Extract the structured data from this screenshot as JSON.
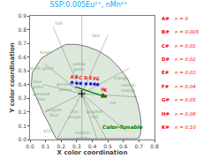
{
  "chart_data": {
    "type": "scatter",
    "title": "SSP:0.005Eu²⁺, nMn²⁺",
    "title_color": "#00aaff",
    "xlabel": "X color coordination",
    "ylabel": "Y color coordination",
    "xlim": [
      0.0,
      0.8
    ],
    "ylim": [
      0.0,
      0.9
    ],
    "xticks": [
      {
        "value": 0.0,
        "label": "0.0"
      },
      0.1,
      0.2,
      0.3,
      0.4,
      0.5,
      0.6,
      0.7,
      0.8
    ],
    "yticks": [
      {
        "value": 0.0,
        "label": "0.0"
      },
      0.1,
      0.2,
      0.3,
      0.4,
      0.5,
      0.6,
      0.7,
      0.8,
      0.9
    ],
    "grid": false,
    "points": {
      "labels": [
        "A",
        "B",
        "C",
        "D",
        "E",
        "F",
        "G",
        "H",
        "K"
      ],
      "x": [
        0.27,
        0.3,
        0.325,
        0.36,
        0.39,
        0.415,
        0.435,
        0.468,
        0.485
      ],
      "y": [
        0.415,
        0.41,
        0.408,
        0.405,
        0.405,
        0.403,
        0.4,
        0.323,
        0.315
      ],
      "colors": [
        "#1515dd",
        "#1515dd",
        "#1515dd",
        "#1515dd",
        "#1515dd",
        "#1515dd",
        "#1515dd",
        "#dd1515",
        "#dd1515"
      ],
      "label_color": "red"
    },
    "boundary": {
      "x": [
        0.1741,
        0.174,
        0.1738,
        0.1736,
        0.173,
        0.1714,
        0.1689,
        0.1644,
        0.1566,
        0.144,
        0.1241,
        0.0913,
        0.0454,
        0.0082,
        0.0139,
        0.0743,
        0.1547,
        0.2296,
        0.3016,
        0.3731,
        0.4441,
        0.5125,
        0.5752,
        0.627,
        0.6658,
        0.6915,
        0.7079,
        0.714,
        0.71,
        0.6992,
        0.6627,
        0.627,
        0.5668,
        0.5031,
        0.4412,
        0.381,
        0.321,
        0.265,
        0.212,
        0.1741
      ],
      "y": [
        0.005,
        0.005,
        0.0049,
        0.0049,
        0.0048,
        0.0051,
        0.0069,
        0.0133,
        0.0291,
        0.0578,
        0.1096,
        0.1767,
        0.295,
        0.389,
        0.486,
        0.5932,
        0.6476,
        0.6923,
        0.6923,
        0.6745,
        0.6425,
        0.5929,
        0.5204,
        0.4412,
        0.3533,
        0.265,
        0.1821,
        0.1048,
        0.038,
        0.0082,
        0.006,
        0.006,
        0.006,
        0.006,
        0.006,
        0.006,
        0.006,
        0.006,
        0.006,
        0.005
      ],
      "color": "#dde8dd",
      "edge_color": "#555555"
    },
    "internal_lines": {
      "color": "#666666",
      "segments": [
        [
          [
            0.333,
            0.333
          ],
          [
            0.333,
            0.007
          ]
        ],
        [
          [
            0.333,
            0.333
          ],
          [
            0.174,
            0.007
          ]
        ],
        [
          [
            0.333,
            0.333
          ],
          [
            0.49,
            0.007
          ]
        ],
        [
          [
            0.333,
            0.333
          ],
          [
            0.333,
            0.9
          ]
        ],
        [
          [
            0.333,
            0.333
          ],
          [
            0.148,
            0.82
          ]
        ],
        [
          [
            0.333,
            0.333
          ],
          [
            0.095,
            0.55
          ]
        ],
        [
          [
            0.333,
            0.333
          ],
          [
            0.085,
            0.4
          ]
        ],
        [
          [
            0.333,
            0.333
          ],
          [
            0.095,
            0.2
          ]
        ],
        [
          [
            0.333,
            0.333
          ],
          [
            0.5,
            0.76
          ]
        ],
        [
          [
            0.333,
            0.333
          ],
          [
            0.64,
            0.52
          ]
        ],
        [
          [
            0.333,
            0.333
          ],
          [
            0.69,
            0.31
          ]
        ],
        [
          [
            0.333,
            0.333
          ],
          [
            0.62,
            0.06
          ]
        ],
        [
          [
            0.333,
            0.333
          ],
          [
            0.43,
            0.007
          ]
        ]
      ]
    },
    "white_point": {
      "x": 0.333,
      "y": 0.333,
      "color": "black"
    },
    "arrow": {
      "start": [
        0.28,
        0.388
      ],
      "end": [
        0.492,
        0.308
      ],
      "color": "green"
    },
    "annotations": [
      {
        "text": "Color-Tunable",
        "x": 0.595,
        "y": 0.095,
        "color": "green"
      }
    ],
    "region_labels": [
      {
        "text": "Green",
        "x": 0.1,
        "y": 0.635,
        "color": "#7aaa7a"
      },
      {
        "text": "bluish green",
        "x": 0.073,
        "y": 0.515,
        "color": "#7aaa7a"
      },
      {
        "text": "blue\ngreen",
        "x": 0.048,
        "y": 0.405,
        "color": "#7aaa7a"
      },
      {
        "text": "greenish\nyellow",
        "x": 0.225,
        "y": 0.385,
        "color": "#7aaa7a"
      },
      {
        "text": "greenish\nblue",
        "x": 0.075,
        "y": 0.315,
        "color": "#7aaa7a"
      },
      {
        "text": "c",
        "x": 0.305,
        "y": 0.285,
        "color": "#7aaa7a"
      },
      {
        "text": "red",
        "x": 0.535,
        "y": 0.27,
        "color": "#7aaa7a"
      },
      {
        "text": "purplish\nblue",
        "x": 0.155,
        "y": 0.195,
        "color": "#7aaa7a"
      },
      {
        "text": "red\npurple",
        "x": 0.285,
        "y": 0.185,
        "color": "#7aaa7a"
      },
      {
        "text": "purplish\nred",
        "x": 0.415,
        "y": 0.185,
        "color": "#7aaa7a"
      },
      {
        "text": "reddish\npurple",
        "x": 0.335,
        "y": 0.028,
        "color": "#7aaa7a"
      },
      {
        "text": "reddish\norange",
        "x": 0.63,
        "y": 0.375,
        "color": "#7aaa7a"
      },
      {
        "text": "orange",
        "x": 0.585,
        "y": 0.445,
        "color": "#7aaa7a"
      },
      {
        "text": "yellow\ngreen",
        "x": 0.315,
        "y": 0.53,
        "color": "#7aaa7a"
      },
      {
        "text": "530",
        "x": 0.185,
        "y": 0.845,
        "color": "#7aaa7a"
      },
      {
        "text": "560",
        "x": 0.425,
        "y": 0.755,
        "color": "#7aaa7a"
      },
      {
        "text": "470",
        "x": 0.113,
        "y": 0.063,
        "color": "#7aaa7a"
      }
    ],
    "key_table": {
      "color": "red",
      "rows": [
        {
          "label": "A#",
          "text": "n = 0"
        },
        {
          "label": "B#",
          "text": "n = 0.005"
        },
        {
          "label": "C#",
          "text": "n = 0.01"
        },
        {
          "label": "D#",
          "text": "n = 0.02"
        },
        {
          "label": "E#",
          "text": "n = 0.03"
        },
        {
          "label": "F#",
          "text": "n = 0.04"
        },
        {
          "label": "G#",
          "text": "n = 0.05"
        },
        {
          "label": "H#",
          "text": "n = 0.08"
        },
        {
          "label": "K#",
          "text": "n = 0.10"
        }
      ]
    }
  }
}
